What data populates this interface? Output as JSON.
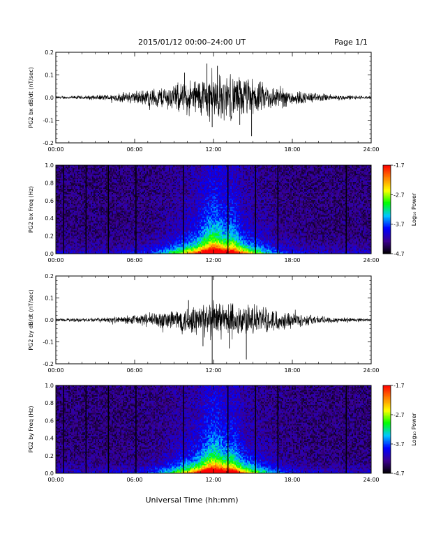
{
  "header": {
    "title": "2015/01/12  00:00–24:00 UT",
    "page": "Page 1/1"
  },
  "xlabel": "Universal Time (hh:mm)",
  "chart_data": [
    {
      "type": "line",
      "ylabel": "PG2 bx dB/dt (nT/sec)",
      "xlim": [
        0,
        24
      ],
      "ylim": [
        -0.2,
        0.2
      ],
      "xticks": [
        "00:00",
        "06:00",
        "12:00",
        "18:00",
        "24:00"
      ],
      "yticks": [
        "-0.2",
        "-0.1",
        "0.0",
        "0.1",
        "0.2"
      ],
      "envelope": {
        "x": [
          0,
          1,
          2,
          3,
          4,
          5,
          6,
          7,
          8,
          9,
          10,
          11,
          12,
          13,
          14,
          15,
          16,
          17,
          18,
          19,
          20,
          21,
          22,
          23,
          24
        ],
        "amplitude": [
          0.005,
          0.006,
          0.007,
          0.009,
          0.012,
          0.018,
          0.025,
          0.032,
          0.04,
          0.05,
          0.062,
          0.075,
          0.085,
          0.085,
          0.078,
          0.068,
          0.05,
          0.04,
          0.03,
          0.022,
          0.016,
          0.012,
          0.009,
          0.007,
          0.005
        ]
      },
      "peaks": [
        {
          "x": 11.5,
          "y": 0.15
        },
        {
          "x": 11.9,
          "y": -0.13
        },
        {
          "x": 12.3,
          "y": 0.14
        },
        {
          "x": 14.0,
          "y": -0.12
        },
        {
          "x": 14.9,
          "y": -0.17
        },
        {
          "x": 9.8,
          "y": 0.11
        }
      ]
    },
    {
      "type": "heatmap",
      "ylabel": "PG2 bx Freq (Hz)",
      "xlim": [
        0,
        24
      ],
      "ylim": [
        0,
        1.0
      ],
      "xticks": [
        "00:00",
        "06:00",
        "12:00",
        "18:00",
        "24:00"
      ],
      "yticks": [
        "0.0",
        "0.2",
        "0.4",
        "0.6",
        "0.8",
        "1.0"
      ],
      "colorbar": {
        "label": "Log₁₀ Power",
        "range": [
          -4.7,
          -1.7
        ],
        "ticks": [
          "-1.7",
          "-2.7",
          "-3.7",
          "-4.7"
        ],
        "colors": [
          "#000000",
          "#3b0090",
          "#0000ff",
          "#00c8ff",
          "#00ff00",
          "#ffff00",
          "#ff8000",
          "#ff0000"
        ]
      },
      "gaps_hours": [
        0.6,
        2.3,
        4.0,
        6.1,
        9.7,
        13.1,
        15.2,
        16.9,
        22.1
      ]
    },
    {
      "type": "line",
      "ylabel": "PG2 by dB/dt (nT/sec)",
      "xlim": [
        0,
        24
      ],
      "ylim": [
        -0.2,
        0.2
      ],
      "xticks": [
        "00:00",
        "06:00",
        "12:00",
        "18:00",
        "24:00"
      ],
      "yticks": [
        "-0.2",
        "-0.1",
        "0.0",
        "0.1",
        "0.2"
      ],
      "envelope": {
        "x": [
          0,
          1,
          2,
          3,
          4,
          5,
          6,
          7,
          8,
          9,
          10,
          11,
          12,
          13,
          14,
          15,
          16,
          17,
          18,
          19,
          20,
          21,
          22,
          23,
          24
        ],
        "amplitude": [
          0.005,
          0.006,
          0.007,
          0.008,
          0.01,
          0.014,
          0.02,
          0.026,
          0.034,
          0.044,
          0.055,
          0.066,
          0.072,
          0.07,
          0.066,
          0.058,
          0.047,
          0.038,
          0.03,
          0.022,
          0.016,
          0.012,
          0.009,
          0.007,
          0.005
        ]
      },
      "peaks": [
        {
          "x": 11.9,
          "y": 0.2
        },
        {
          "x": 11.9,
          "y": -0.2
        },
        {
          "x": 11.2,
          "y": -0.12
        },
        {
          "x": 14.5,
          "y": -0.18
        },
        {
          "x": 13.2,
          "y": -0.13
        },
        {
          "x": 10.1,
          "y": 0.09
        }
      ]
    },
    {
      "type": "heatmap",
      "ylabel": "PG2 by Freq (Hz)",
      "xlim": [
        0,
        24
      ],
      "ylim": [
        0,
        1.0
      ],
      "xticks": [
        "00:00",
        "06:00",
        "12:00",
        "18:00",
        "24:00"
      ],
      "yticks": [
        "0.0",
        "0.2",
        "0.4",
        "0.6",
        "0.8",
        "1.0"
      ],
      "colorbar": {
        "label": "Log₁₀ Power",
        "range": [
          -4.7,
          -1.7
        ],
        "ticks": [
          "-1.7",
          "-2.7",
          "-3.7",
          "-4.7"
        ],
        "colors": [
          "#000000",
          "#3b0090",
          "#0000ff",
          "#00c8ff",
          "#00ff00",
          "#ffff00",
          "#ff8000",
          "#ff0000"
        ]
      },
      "gaps_hours": [
        0.6,
        2.3,
        4.0,
        6.1,
        9.7,
        13.1,
        15.2,
        16.9,
        22.1
      ]
    }
  ]
}
